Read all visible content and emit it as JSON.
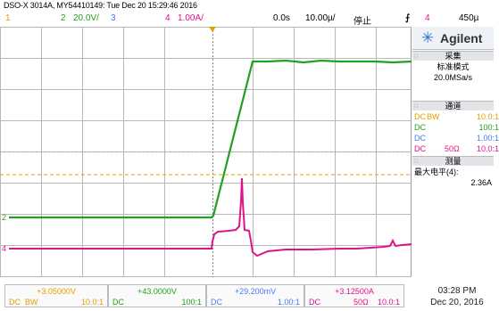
{
  "header": {
    "device_line": "DSO-X 3014A, MY54410149: Tue Dec 20 15:29:46 2016"
  },
  "topbar": {
    "ch1_num": "1",
    "ch2_num": "2",
    "ch2_scale": "20.0V/",
    "ch3_num": "3",
    "ch4_num": "4",
    "ch4_scale": "1.00A/",
    "time_offset": "0.0s",
    "time_scale": "10.00µ/",
    "run_state": "停止",
    "trigger_ch": "4",
    "trigger_level": "450µ"
  },
  "plot": {
    "markers": {
      "ch2": "2",
      "ch4": "4"
    }
  },
  "sidebar": {
    "brand_name": "Agilent",
    "acq_header": "采集",
    "acq_mode": "标准模式",
    "acq_rate": "20.0MSa/s",
    "chan_header": "通道",
    "channels": [
      {
        "coupling": "DC",
        "extra": "BW",
        "probe": "10.0:1",
        "color": "#e0a000"
      },
      {
        "coupling": "DC",
        "extra": "",
        "probe": "100:1",
        "color": "#22a020"
      },
      {
        "coupling": "DC",
        "extra": "",
        "probe": "1.00:1",
        "color": "#4a78ff"
      },
      {
        "coupling": "DC",
        "extra": "50Ω",
        "probe": "10.0:1",
        "color": "#e0148a"
      }
    ],
    "meas_header": "测量",
    "meas_label": "最大电平(4):",
    "meas_value": "2.36A"
  },
  "bottom": {
    "channels": [
      {
        "value": "+3.05000V",
        "coupling": "DC",
        "extra": "BW",
        "probe": "10.0:1",
        "color": "#e0a000"
      },
      {
        "value": "+43.0000V",
        "coupling": "DC",
        "extra": "",
        "probe": "100:1",
        "color": "#22a020"
      },
      {
        "value": "+29.200mV",
        "coupling": "DC",
        "extra": "",
        "probe": "1.00:1",
        "color": "#4a78ff"
      },
      {
        "value": "+3.12500A",
        "coupling": "DC",
        "extra": "50Ω",
        "probe": "10.0:1",
        "color": "#e0148a"
      }
    ],
    "clock_time": "03:28 PM",
    "clock_date": "Dec 20, 2016"
  },
  "colors": {
    "ch1": "#e0a000",
    "ch2": "#22a020",
    "ch3": "#4a78ff",
    "ch4": "#e0148a",
    "grid": "#b8b8b8"
  }
}
